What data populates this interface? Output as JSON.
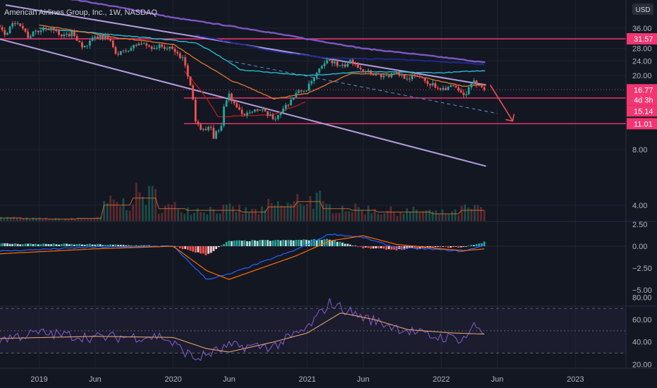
{
  "header": {
    "title": "American Airlines Group, Inc., 1W, NASDAQ",
    "currency": "USD"
  },
  "colors": {
    "background": "#131722",
    "up": "#26a69a",
    "down": "#ef5350",
    "level_line": "#f23672",
    "channel": "#b39ddb",
    "ma_slow": "#7e57c2",
    "ma_navy": "#1e2a8c",
    "ma_teal": "#26c6da",
    "ma_orange": "#e0792f",
    "ma_red": "#b71c1c",
    "macd_line": "#2962ff",
    "macd_signal": "#ff6d00",
    "rsi_line": "#7e57c2",
    "rsi_ma": "#e0a070"
  },
  "x_axis_labels": [
    "2019",
    "Jun",
    "2020",
    "Jun",
    "2021",
    "Jun",
    "2022",
    "Jun",
    "2023"
  ],
  "price_axis_labels": [
    "36.00",
    "28.00",
    "24.00",
    "20.00",
    "8.00",
    "4.00"
  ],
  "price_badges": [
    {
      "value": "31.57",
      "sub": "",
      "color": "#f23672"
    },
    {
      "value": "16.77",
      "sub": "4d 3h",
      "color": "#f23672"
    },
    {
      "value": "15.14",
      "sub": "",
      "color": "#f23672"
    },
    {
      "value": "11.01",
      "sub": "",
      "color": "#f23672"
    }
  ],
  "macd_axis_labels": [
    "2.50",
    "0.00",
    "−2.50",
    "−5.00"
  ],
  "rsi_axis_labels": [
    "80.00",
    "60.00",
    "40.00",
    "20.00"
  ],
  "chart_data": {
    "type": "candlestick",
    "title": "American Airlines Group, Inc., 1W, NASDAQ",
    "x_range": [
      "2018-09",
      "2023-03"
    ],
    "y_scale": "log",
    "price_levels": [
      31.57,
      15.14,
      11.01
    ],
    "last_price": 16.77,
    "countdown": "4d 3h",
    "price_path": [
      [
        "2018-09",
        38.0
      ],
      [
        "2018-10",
        33.5
      ],
      [
        "2018-11",
        40.0
      ],
      [
        "2018-12",
        32.5
      ],
      [
        "2019-01",
        35.0
      ],
      [
        "2019-02",
        36.5
      ],
      [
        "2019-03",
        32.0
      ],
      [
        "2019-04",
        34.0
      ],
      [
        "2019-05",
        28.0
      ],
      [
        "2019-06",
        32.0
      ],
      [
        "2019-07",
        32.5
      ],
      [
        "2019-08",
        26.0
      ],
      [
        "2019-09",
        27.5
      ],
      [
        "2019-10",
        30.0
      ],
      [
        "2019-11",
        28.5
      ],
      [
        "2019-12",
        28.7
      ],
      [
        "2020-01",
        27.5
      ],
      [
        "2020-02",
        24.0
      ],
      [
        "2020-03",
        12.0
      ],
      [
        "2020-04",
        10.0
      ],
      [
        "2020-05",
        9.5
      ],
      [
        "2020-06",
        16.0
      ],
      [
        "2020-07",
        12.0
      ],
      [
        "2020-08",
        13.2
      ],
      [
        "2020-09",
        12.8
      ],
      [
        "2020-10",
        11.6
      ],
      [
        "2020-11",
        13.5
      ],
      [
        "2020-12",
        16.0
      ],
      [
        "2021-01",
        17.0
      ],
      [
        "2021-02",
        21.0
      ],
      [
        "2021-03",
        24.5
      ],
      [
        "2021-04",
        22.0
      ],
      [
        "2021-05",
        24.0
      ],
      [
        "2021-06",
        21.5
      ],
      [
        "2021-07",
        20.5
      ],
      [
        "2021-08",
        19.8
      ],
      [
        "2021-09",
        20.5
      ],
      [
        "2021-10",
        19.5
      ],
      [
        "2021-11",
        20.0
      ],
      [
        "2021-12",
        18.0
      ],
      [
        "2022-01",
        17.0
      ],
      [
        "2022-02",
        17.5
      ],
      [
        "2022-03",
        15.5
      ],
      [
        "2022-04",
        18.5
      ],
      [
        "2022-05",
        17.0
      ]
    ],
    "moving_averages": [
      {
        "color": "#7e57c2",
        "points": [
          [
            "2019-01",
            55.0
          ],
          [
            "2020-01",
            41.0
          ],
          [
            "2021-01",
            31.5
          ],
          [
            "2021-06",
            28.0
          ],
          [
            "2022-05",
            23.5
          ]
        ]
      },
      {
        "color": "#1e2a8c",
        "points": [
          [
            "2020-03",
            33.0
          ],
          [
            "2020-10",
            27.0
          ],
          [
            "2021-03",
            24.8
          ],
          [
            "2021-09",
            24.5
          ],
          [
            "2022-05",
            23.0
          ]
        ]
      },
      {
        "color": "#26c6da",
        "points": [
          [
            "2019-01",
            36.0
          ],
          [
            "2020-01",
            31.0
          ],
          [
            "2020-03",
            30.0
          ],
          [
            "2020-07",
            21.5
          ],
          [
            "2021-01",
            20.0
          ],
          [
            "2021-06",
            21.0
          ],
          [
            "2022-01",
            20.7
          ],
          [
            "2022-05",
            21.3
          ]
        ]
      },
      {
        "color": "#e0792f",
        "points": [
          [
            "2019-01",
            37.5
          ],
          [
            "2019-08",
            32.0
          ],
          [
            "2020-01",
            29.5
          ],
          [
            "2020-03",
            24.5
          ],
          [
            "2020-06",
            19.0
          ],
          [
            "2020-10",
            15.0
          ],
          [
            "2021-01",
            16.0
          ],
          [
            "2021-05",
            20.5
          ],
          [
            "2021-10",
            20.3
          ],
          [
            "2022-03",
            17.5
          ],
          [
            "2022-05",
            18.0
          ]
        ]
      },
      {
        "color": "#b71c1c",
        "points": [
          [
            "2020-02",
            21.0
          ],
          [
            "2020-05",
            12.0
          ],
          [
            "2020-10",
            12.3
          ],
          [
            "2021-01",
            14.5
          ]
        ]
      }
    ],
    "trend_channel": {
      "upper": [
        [
          "2018-10",
          48.0
        ],
        [
          "2022-05",
          17.8
        ]
      ],
      "lower": [
        [
          "2018-09",
          32.0
        ],
        [
          "2022-05",
          6.5
        ]
      ],
      "midline": [
        [
          "2020-06",
          24.0
        ],
        [
          "2022-06",
          12.5
        ]
      ]
    },
    "projection_arrow": [
      [
        "2022-05",
        17.8
      ],
      [
        "2022-06",
        12.0
      ]
    ],
    "volume": {
      "relative_levels": [
        0.08,
        0.06,
        0.05,
        0.07,
        0.45,
        0.65,
        0.35,
        0.3,
        0.3,
        0.25,
        0.4,
        0.55,
        0.35,
        0.3,
        0.25,
        0.25,
        0.2,
        0.3,
        0.35
      ]
    },
    "macd": {
      "ylim": [
        -5.5,
        2.6
      ],
      "line": [
        [
          "2018-09",
          -0.6
        ],
        [
          "2019-06",
          -0.1
        ],
        [
          "2020-01",
          0.0
        ],
        [
          "2020-04",
          -3.8
        ],
        [
          "2020-06",
          -3.2
        ],
        [
          "2020-12",
          -0.4
        ],
        [
          "2021-03",
          1.4
        ],
        [
          "2021-06",
          1.0
        ],
        [
          "2021-09",
          -0.2
        ],
        [
          "2022-01",
          -0.4
        ],
        [
          "2022-03",
          -0.6
        ],
        [
          "2022-05",
          0.2
        ]
      ],
      "signal": [
        [
          "2018-09",
          -0.9
        ],
        [
          "2019-06",
          -0.3
        ],
        [
          "2020-01",
          0.0
        ],
        [
          "2020-04",
          -2.8
        ],
        [
          "2020-06",
          -3.8
        ],
        [
          "2020-12",
          -1.1
        ],
        [
          "2021-03",
          0.6
        ],
        [
          "2021-06",
          1.2
        ],
        [
          "2021-09",
          0.2
        ],
        [
          "2022-01",
          -0.3
        ],
        [
          "2022-03",
          -0.5
        ],
        [
          "2022-05",
          -0.3
        ]
      ]
    },
    "rsi": {
      "ylim": [
        20,
        80
      ],
      "bands": [
        70,
        50,
        30
      ],
      "line": [
        [
          "2018-09",
          42
        ],
        [
          "2019-01",
          48
        ],
        [
          "2019-06",
          44
        ],
        [
          "2019-12",
          45
        ],
        [
          "2020-03",
          25
        ],
        [
          "2020-06",
          36
        ],
        [
          "2020-10",
          36
        ],
        [
          "2021-01",
          52
        ],
        [
          "2021-03",
          75
        ],
        [
          "2021-06",
          62
        ],
        [
          "2021-09",
          53
        ],
        [
          "2021-12",
          45
        ],
        [
          "2022-03",
          43
        ],
        [
          "2022-04",
          55
        ],
        [
          "2022-05",
          47
        ]
      ],
      "ma": [
        [
          "2018-09",
          43
        ],
        [
          "2019-06",
          45
        ],
        [
          "2020-01",
          44
        ],
        [
          "2020-04",
          34
        ],
        [
          "2020-06",
          31
        ],
        [
          "2020-10",
          40
        ],
        [
          "2021-01",
          48
        ],
        [
          "2021-04",
          66
        ],
        [
          "2021-07",
          60
        ],
        [
          "2021-10",
          51
        ],
        [
          "2022-02",
          48
        ],
        [
          "2022-05",
          47
        ]
      ]
    }
  }
}
